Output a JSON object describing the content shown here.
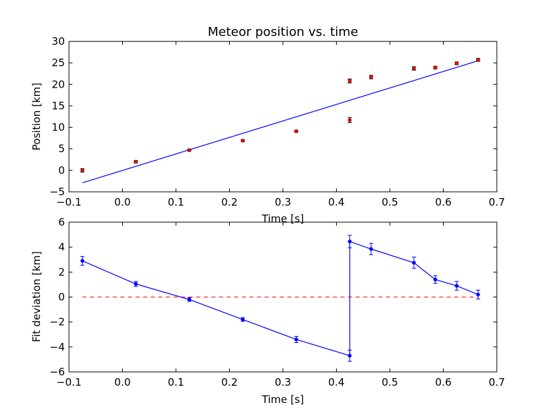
{
  "chart_data": [
    {
      "type": "scatter",
      "title": "Meteor position vs. time",
      "xlabel": "Time [s]",
      "ylabel": "Position [km]",
      "xlim": [
        -0.1,
        0.7
      ],
      "ylim": [
        -5,
        30
      ],
      "xticks": [
        -0.1,
        0.0,
        0.1,
        0.2,
        0.3,
        0.4,
        0.5,
        0.6,
        0.7
      ],
      "xtick_labels": [
        "−0.1",
        "0.0",
        "0.1",
        "0.2",
        "0.3",
        "0.4",
        "0.5",
        "0.6",
        "0.7"
      ],
      "yticks": [
        -5,
        0,
        5,
        10,
        15,
        20,
        25,
        30
      ],
      "ytick_labels": [
        "−5",
        "0",
        "5",
        "10",
        "15",
        "20",
        "25",
        "30"
      ],
      "grid": false,
      "points": {
        "color": "#ff0000",
        "x": [
          -0.075,
          0.025,
          0.125,
          0.225,
          0.325,
          0.425,
          0.425,
          0.465,
          0.545,
          0.585,
          0.625,
          0.665
        ],
        "y": [
          0.0,
          2.0,
          4.7,
          6.9,
          9.1,
          11.7,
          20.8,
          21.7,
          23.7,
          23.9,
          24.9,
          25.7
        ],
        "yerr": [
          0.4,
          0.25,
          0.2,
          0.2,
          0.2,
          0.6,
          0.45,
          0.4,
          0.4,
          0.3,
          0.3,
          0.35
        ]
      },
      "fit_line": {
        "color": "#0000ff",
        "x": [
          -0.075,
          0.665
        ],
        "y": [
          -2.9,
          25.5
        ]
      }
    },
    {
      "type": "line",
      "title": "",
      "xlabel": "Time [s]",
      "ylabel": "Fit deviation [km]",
      "xlim": [
        -0.1,
        0.7
      ],
      "ylim": [
        -6,
        6
      ],
      "xticks": [
        -0.1,
        0.0,
        0.1,
        0.2,
        0.3,
        0.4,
        0.5,
        0.6,
        0.7
      ],
      "xtick_labels": [
        "−0.1",
        "0.0",
        "0.1",
        "0.2",
        "0.3",
        "0.4",
        "0.5",
        "0.6",
        "0.7"
      ],
      "yticks": [
        -6,
        -4,
        -2,
        0,
        2,
        4,
        6
      ],
      "ytick_labels": [
        "−6",
        "−4",
        "−2",
        "0",
        "2",
        "4",
        "6"
      ],
      "grid": false,
      "series": [
        {
          "color": "#0000ff",
          "x": [
            -0.075,
            0.025,
            0.125,
            0.225,
            0.325,
            0.425,
            0.425,
            0.465,
            0.545,
            0.585,
            0.625,
            0.665
          ],
          "y": [
            2.9,
            1.05,
            -0.2,
            -1.8,
            -3.4,
            -4.7,
            4.45,
            3.85,
            2.75,
            1.4,
            0.9,
            0.2
          ],
          "yerr": [
            0.35,
            0.2,
            0.15,
            0.15,
            0.25,
            0.45,
            0.5,
            0.45,
            0.45,
            0.3,
            0.35,
            0.35
          ]
        }
      ],
      "reference_line": {
        "y": 0,
        "color": "#ff0000",
        "style": "dashed"
      }
    }
  ]
}
